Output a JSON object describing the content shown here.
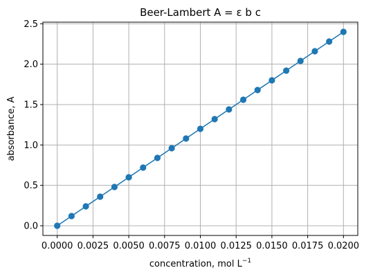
{
  "chart_data": {
    "type": "line",
    "title": "Beer-Lambert A = ε b c",
    "xlabel": "concentration, mol L",
    "xlabel_sup": "−1",
    "ylabel": "absorbance, A",
    "xlim": [
      -0.001,
      0.021
    ],
    "ylim": [
      -0.12,
      2.52
    ],
    "grid": true,
    "marker": "circle",
    "x_ticks": [
      0.0,
      0.0025,
      0.005,
      0.0075,
      0.01,
      0.0125,
      0.015,
      0.0175,
      0.02
    ],
    "x_tick_labels": [
      "0.0000",
      "0.0025",
      "0.0050",
      "0.0075",
      "0.0100",
      "0.0125",
      "0.0150",
      "0.0175",
      "0.0200"
    ],
    "y_ticks": [
      0.0,
      0.5,
      1.0,
      1.5,
      2.0,
      2.5
    ],
    "y_tick_labels": [
      "0.0",
      "0.5",
      "1.0",
      "1.5",
      "2.0",
      "2.5"
    ],
    "series": [
      {
        "color": "#1f77b4",
        "x": [
          0.0,
          0.001,
          0.002,
          0.003,
          0.004,
          0.005,
          0.006,
          0.007,
          0.008,
          0.009,
          0.01,
          0.011,
          0.012,
          0.013,
          0.014,
          0.015,
          0.016,
          0.017,
          0.018,
          0.019,
          0.02
        ],
        "y": [
          0.0,
          0.12,
          0.24,
          0.36,
          0.48,
          0.6,
          0.72,
          0.84,
          0.96,
          1.08,
          1.2,
          1.32,
          1.44,
          1.56,
          1.68,
          1.8,
          1.92,
          2.04,
          2.16,
          2.28,
          2.4
        ]
      }
    ]
  }
}
